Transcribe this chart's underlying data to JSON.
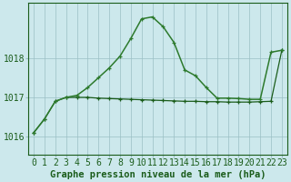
{
  "title": "Graphe pression niveau de la mer (hPa)",
  "background_color": "#cce8ec",
  "grid_color": "#9bbfc4",
  "line1_color": "#1a5c1a",
  "line2_color": "#2d7a2d",
  "x": [
    0,
    1,
    2,
    3,
    4,
    5,
    6,
    7,
    8,
    9,
    10,
    11,
    12,
    13,
    14,
    15,
    16,
    17,
    18,
    19,
    20,
    21,
    22,
    23
  ],
  "line1_y": [
    1016.1,
    1016.45,
    1016.9,
    1017.0,
    1017.0,
    1017.0,
    1016.98,
    1016.97,
    1016.96,
    1016.95,
    1016.94,
    1016.93,
    1016.92,
    1016.91,
    1016.9,
    1016.9,
    1016.89,
    1016.89,
    1016.88,
    1016.88,
    1016.88,
    1016.89,
    1016.9,
    1018.2
  ],
  "line2_y": [
    1016.1,
    1016.45,
    1016.9,
    1017.0,
    1017.05,
    1017.25,
    1017.5,
    1017.75,
    1018.05,
    1018.5,
    1019.0,
    1019.05,
    1018.8,
    1018.4,
    1017.7,
    1017.55,
    1017.25,
    1016.98,
    1016.98,
    1016.97,
    1016.95,
    1016.95,
    1018.15,
    1018.2
  ],
  "ylim": [
    1015.55,
    1019.4
  ],
  "yticks": [
    1016,
    1017,
    1018
  ],
  "tick_fontsize": 7,
  "title_fontsize": 7.5
}
